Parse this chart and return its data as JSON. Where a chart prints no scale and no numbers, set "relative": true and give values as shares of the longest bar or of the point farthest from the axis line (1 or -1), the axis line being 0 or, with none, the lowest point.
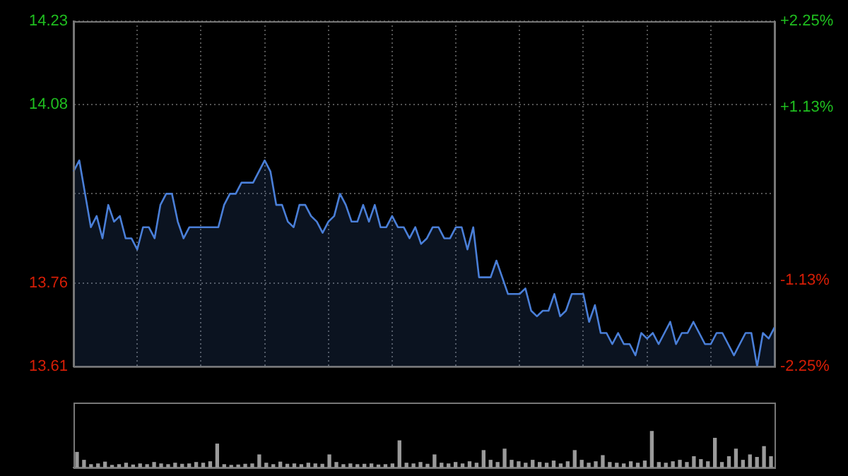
{
  "chart_data": [
    {
      "type": "area",
      "ylim": [
        13.61,
        14.23
      ],
      "yticks": [
        13.61,
        13.76,
        {
          "value": 13.92,
          "label": null
        },
        14.08,
        14.23
      ],
      "y2lim": [
        -2.25,
        2.25
      ],
      "y2ticks": [
        {
          "value": -2.25,
          "label": "-2.25%"
        },
        {
          "value": -1.13,
          "label": "-1.13%"
        },
        {
          "value": 0,
          "label": null
        },
        {
          "value": 1.13,
          "label": "+1.13%"
        },
        {
          "value": 2.25,
          "label": "+2.25%"
        }
      ],
      "grid": true,
      "tick_labels": "y",
      "categories": [
        null,
        null,
        null,
        null,
        null,
        null,
        null,
        null,
        null,
        null,
        null,
        null,
        null,
        null,
        null,
        null,
        null,
        null,
        null,
        null,
        null,
        null,
        null,
        null,
        null,
        null,
        null,
        null,
        null,
        null,
        null,
        null,
        null,
        null,
        null,
        null,
        null,
        null,
        null,
        null,
        null,
        null,
        null,
        null,
        null,
        null,
        null,
        null,
        null,
        null,
        null,
        null,
        null,
        null,
        null,
        null,
        null,
        null,
        null,
        null,
        null,
        null,
        null,
        null,
        null,
        null,
        null,
        null,
        null,
        null,
        null,
        null,
        null,
        null,
        null,
        null,
        null,
        null,
        null,
        null,
        null,
        null,
        null,
        null,
        null,
        null,
        null,
        null,
        null,
        null,
        null,
        null,
        null,
        null,
        null,
        null,
        null,
        null,
        null,
        null,
        null,
        null,
        null,
        null,
        null,
        null,
        null,
        null,
        null,
        null,
        null,
        null,
        null,
        null,
        null,
        null,
        null,
        null,
        null,
        null,
        null,
        null
      ],
      "series": [
        {
          "color": "#4a7fd8",
          "values": [
            13.96,
            13.98,
            13.92,
            13.86,
            13.88,
            13.84,
            13.9,
            13.87,
            13.88,
            13.84,
            13.84,
            13.82,
            13.86,
            13.86,
            13.84,
            13.9,
            13.92,
            13.92,
            13.87,
            13.84,
            13.86,
            13.86,
            13.86,
            13.86,
            13.86,
            13.86,
            13.9,
            13.92,
            13.92,
            13.94,
            13.94,
            13.94,
            13.96,
            13.98,
            13.96,
            13.9,
            13.9,
            13.87,
            13.86,
            13.9,
            13.9,
            13.88,
            13.87,
            13.85,
            13.87,
            13.88,
            13.92,
            13.9,
            13.87,
            13.87,
            13.9,
            13.87,
            13.9,
            13.86,
            13.86,
            13.88,
            13.86,
            13.86,
            13.84,
            13.86,
            13.83,
            13.84,
            13.86,
            13.86,
            13.84,
            13.84,
            13.86,
            13.86,
            13.82,
            13.86,
            13.77,
            13.77,
            13.77,
            13.8,
            13.77,
            13.74,
            13.74,
            13.74,
            13.75,
            13.71,
            13.7,
            13.71,
            13.71,
            13.74,
            13.7,
            13.71,
            13.74,
            13.74,
            13.74,
            13.69,
            13.72,
            13.67,
            13.67,
            13.65,
            13.67,
            13.65,
            13.65,
            13.63,
            13.67,
            13.66,
            13.67,
            13.65,
            13.67,
            13.69,
            13.65,
            13.67,
            13.67,
            13.69,
            13.67,
            13.65,
            13.65,
            13.67,
            13.67,
            13.65,
            13.63,
            13.65,
            13.67,
            13.67,
            13.61,
            13.67,
            13.66,
            13.68
          ]
        }
      ]
    },
    {
      "type": "bar",
      "relative": true,
      "tick_labels": false,
      "color": "#9a9a9a",
      "categories": [
        null,
        null,
        null,
        null,
        null,
        null,
        null,
        null,
        null,
        null,
        null,
        null,
        null,
        null,
        null,
        null,
        null,
        null,
        null,
        null,
        null,
        null,
        null,
        null,
        null,
        null,
        null,
        null,
        null,
        null,
        null,
        null,
        null,
        null,
        null,
        null,
        null,
        null,
        null,
        null,
        null,
        null,
        null,
        null,
        null,
        null,
        null,
        null,
        null,
        null,
        null,
        null,
        null,
        null,
        null,
        null,
        null,
        null,
        null,
        null,
        null,
        null,
        null,
        null,
        null,
        null,
        null,
        null,
        null,
        null,
        null,
        null,
        null,
        null,
        null,
        null,
        null,
        null,
        null,
        null,
        null,
        null,
        null,
        null,
        null,
        null,
        null,
        null,
        null,
        null,
        null,
        null,
        null,
        null,
        null,
        null,
        null,
        null,
        null,
        null
      ],
      "values": [
        0.42,
        0.2,
        0.08,
        0.1,
        0.15,
        0.06,
        0.08,
        0.12,
        0.07,
        0.1,
        0.08,
        0.14,
        0.1,
        0.08,
        0.12,
        0.09,
        0.1,
        0.14,
        0.12,
        0.16,
        0.65,
        0.08,
        0.06,
        0.07,
        0.09,
        0.1,
        0.35,
        0.12,
        0.08,
        0.15,
        0.09,
        0.1,
        0.08,
        0.12,
        0.1,
        0.09,
        0.35,
        0.14,
        0.08,
        0.1,
        0.08,
        0.09,
        0.1,
        0.07,
        0.08,
        0.1,
        0.74,
        0.12,
        0.1,
        0.14,
        0.09,
        0.35,
        0.12,
        0.1,
        0.14,
        0.1,
        0.16,
        0.12,
        0.47,
        0.2,
        0.14,
        0.51,
        0.2,
        0.16,
        0.12,
        0.2,
        0.14,
        0.12,
        0.18,
        0.1,
        0.16,
        0.47,
        0.2,
        0.12,
        0.16,
        0.33,
        0.14,
        0.12,
        0.1,
        0.16,
        0.12,
        0.18,
        1.0,
        0.14,
        0.12,
        0.16,
        0.2,
        0.14,
        0.3,
        0.22,
        0.16,
        0.81,
        0.14,
        0.3,
        0.51,
        0.2,
        0.35,
        0.28,
        0.58,
        0.3
      ]
    }
  ]
}
